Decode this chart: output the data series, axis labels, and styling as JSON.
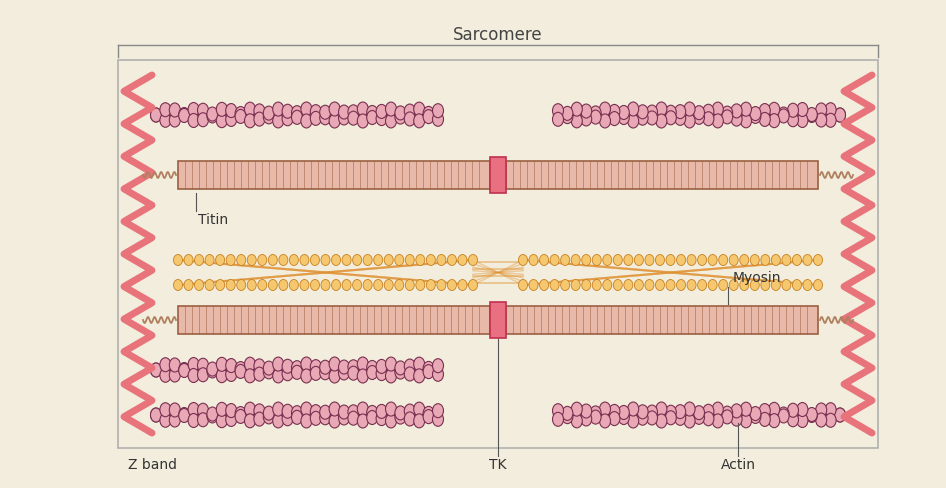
{
  "bg_color": "#f2eddc",
  "box_border_color": "#b0b0b0",
  "z_band_color": "#e8737a",
  "myosin_fill": "#e8b8a8",
  "myosin_border": "#9b6040",
  "tk_color": "#e87080",
  "actin_fill": "#e8a8b5",
  "actin_border": "#a04060",
  "actin_dark": "#7a3050",
  "titin_fill": "#f5c870",
  "titin_border": "#c88020",
  "titin_center_color": "#e09030",
  "title": "Sarcomere",
  "label_titin": "Titin",
  "label_zband": "Z band",
  "label_tk": "TK",
  "label_actin": "Actin",
  "label_myosin": "Myosin",
  "coil_color": "#b08060"
}
